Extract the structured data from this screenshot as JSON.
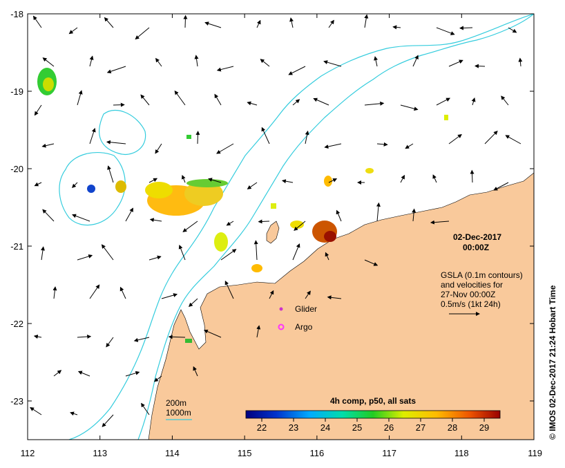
{
  "map": {
    "lon_range": [
      112,
      119
    ],
    "lat_range": [
      -23.5,
      -18
    ],
    "x_ticks": [
      "112",
      "113",
      "114",
      "115",
      "116",
      "117",
      "118",
      "119"
    ],
    "y_ticks": [
      "-18",
      "-19",
      "-20",
      "-21",
      "-22",
      "-23"
    ],
    "land_color": "#f9c99b",
    "contour_color": "#33ccdd"
  },
  "date": {
    "line1": "02-Dec-2017",
    "line2": "00:00Z"
  },
  "gsla": {
    "line1": "GSLA (0.1m contours)",
    "line2": "and velocities for",
    "line3": "27-Nov 00:00Z",
    "scale": "0.5m/s (1kt 24h)"
  },
  "legend": {
    "glider": "Glider",
    "argo": "Argo",
    "glider_color": "#cc33cc",
    "argo_color": "#ff33ff"
  },
  "depth_legend": {
    "d200": "200m",
    "d1000": "1000m"
  },
  "colorbar": {
    "title": "4h comp, p50, all sats",
    "ticks": [
      "22",
      "23",
      "24",
      "25",
      "26",
      "27",
      "28",
      "29"
    ]
  },
  "credit": "© IMOS 02-Dec-2017 21:24 Hobart Time"
}
